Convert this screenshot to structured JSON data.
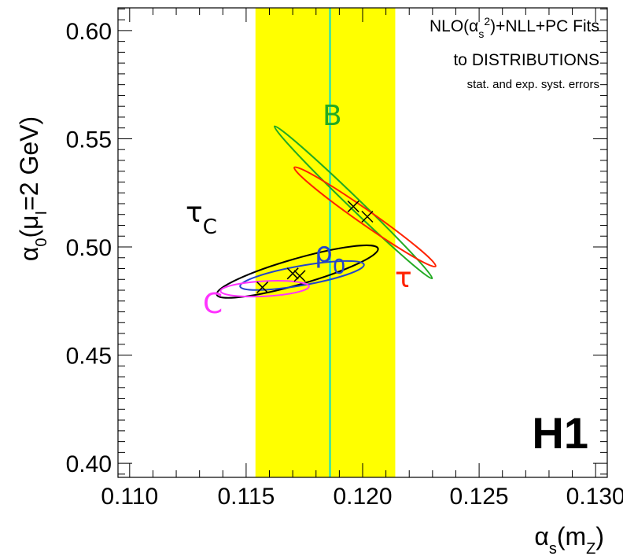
{
  "chart_data": {
    "type": "scatter",
    "title": "",
    "xlabel": "αs(mZ)",
    "ylabel": "α0(μI=2 GeV)",
    "xlim": [
      0.1095,
      0.1305
    ],
    "ylim": [
      0.3935,
      0.6105
    ],
    "x_ticks": [
      "0.110",
      "0.115",
      "0.120",
      "0.125",
      "0.130"
    ],
    "y_ticks": [
      "0.40",
      "0.45",
      "0.50",
      "0.55",
      "0.60"
    ],
    "x_tick_values": [
      0.11,
      0.115,
      0.12,
      0.125,
      0.13
    ],
    "y_tick_values": [
      0.4,
      0.45,
      0.5,
      0.55,
      0.6
    ],
    "grid": false,
    "band": {
      "x_min": 0.1154,
      "x_max": 0.1214,
      "color": "#ffff00"
    },
    "reference_line": {
      "x": 0.1186,
      "color": "#00d8d8"
    },
    "annotations": [
      "NLO(αs²)+NLL+PC Fits",
      "to DISTRIBUTIONS",
      "stat. and exp. syst. errors"
    ],
    "brand": "H1",
    "series": [
      {
        "name": "τC",
        "color": "#000000",
        "points": [
          {
            "x": 0.1157,
            "y": 0.4813
          }
        ],
        "ellipse": {
          "cx": 0.1172,
          "cy": 0.4886,
          "a": 0.0036,
          "b": 0.006,
          "angle": -16
        }
      },
      {
        "name": "ρ0",
        "color": "#2244cc",
        "points": [
          {
            "x": 0.117,
            "y": 0.4877
          }
        ],
        "ellipse": {
          "cx": 0.1174,
          "cy": 0.4868,
          "a": 0.0027,
          "b": 0.0045,
          "angle": -10
        }
      },
      {
        "name": "C",
        "color": "#ff33ff",
        "points": [
          {
            "x": 0.1173,
            "y": 0.4866
          }
        ],
        "ellipse": {
          "cx": 0.1158,
          "cy": 0.4807,
          "a": 0.0019,
          "b": 0.0035,
          "angle": -3
        }
      },
      {
        "name": "B",
        "color": "#22aa22",
        "points": [
          {
            "x": 0.1196,
            "y": 0.5187
          }
        ],
        "ellipse": {
          "cx": 0.1196,
          "cy": 0.5206,
          "a": 0.0047,
          "b": 0.0026,
          "angle": 44
        }
      },
      {
        "name": "τ",
        "color": "#ff2200",
        "points": [
          {
            "x": 0.1202,
            "y": 0.514
          }
        ],
        "ellipse": {
          "cx": 0.1201,
          "cy": 0.5139,
          "a": 0.0037,
          "b": 0.0033,
          "angle": 35
        }
      }
    ]
  }
}
